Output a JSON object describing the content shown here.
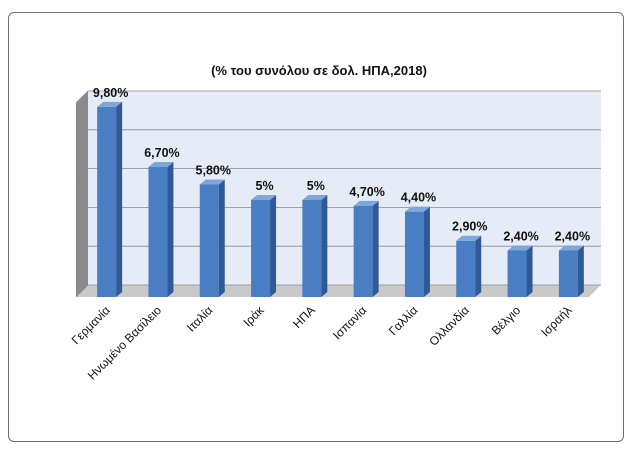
{
  "chart_data": {
    "type": "bar",
    "title": "(% του συνόλου σε δολ. ΗΠΑ,2018)",
    "categories": [
      "Γερμανία",
      "Ηνωμένο Βασίλειο",
      "Ιταλία",
      "Ιράκ",
      "ΗΠΑ",
      "Ισπανία",
      "Γαλλία",
      "Ολλανδία",
      "Βέλγιο",
      "Ισραήλ"
    ],
    "values": [
      9.8,
      6.7,
      5.8,
      5.0,
      5.0,
      4.7,
      4.4,
      2.9,
      2.4,
      2.4
    ],
    "data_labels": [
      "9,80%",
      "6,70%",
      "5,80%",
      "5%",
      "5%",
      "4,70%",
      "4,40%",
      "2,90%",
      "2,40%",
      "2,40%"
    ],
    "ylim": [
      0,
      10
    ],
    "grid": true,
    "legend": "none",
    "colors": {
      "bar_front": "#4a7ec4",
      "bar_side": "#2f5a96",
      "bar_top": "#7ea6da",
      "plot_back": "#e6ecf7",
      "floor": "#c9c9c9",
      "side_wall": "#8a8a8a",
      "grid": "#8a8a8a"
    }
  }
}
